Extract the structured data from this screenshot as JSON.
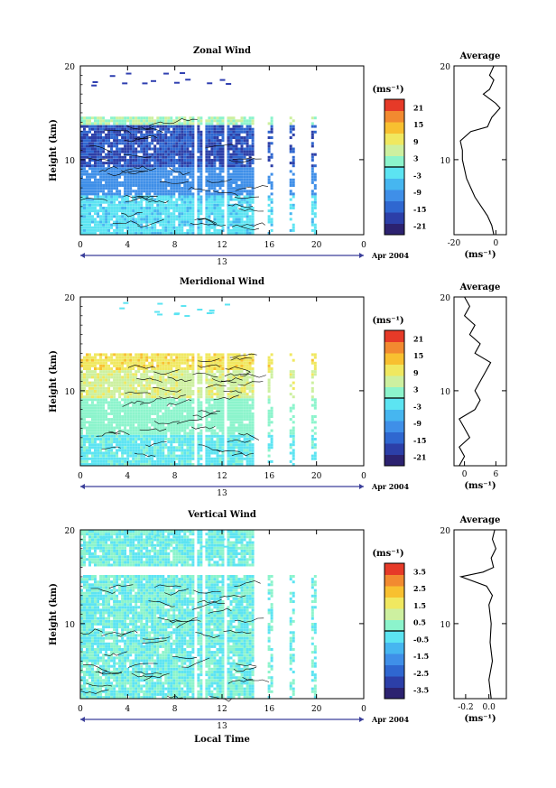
{
  "figure": {
    "date_label": "Apr 2004",
    "day_label": "13",
    "xlabel": "Local Time",
    "ylabel": "Height (km)",
    "unit_label": "(ms⁻¹)",
    "average_title": "Average"
  },
  "chart_data": [
    {
      "type": "heatmap",
      "title": "Zonal Wind",
      "x_ticks": [
        "0",
        "4",
        "8",
        "12",
        "16",
        "20",
        "0"
      ],
      "xlim": [
        0,
        24
      ],
      "y_ticks": [
        "20",
        "10"
      ],
      "ylim": [
        2,
        20
      ],
      "colorbar_ticks": [
        "21",
        "15",
        "9",
        "3",
        "-3",
        "-9",
        "-15",
        "-21"
      ],
      "colorbar_range": [
        -24,
        24
      ],
      "regimes": [
        {
          "z0": 2,
          "z1": 6,
          "value": -3
        },
        {
          "z0": 6,
          "z1": 9,
          "value": -10
        },
        {
          "z0": 9,
          "z1": 13.5,
          "value": -16
        },
        {
          "z0": 13.5,
          "z1": 14.5,
          "value": 4
        }
      ],
      "average": {
        "xlim": [
          -20,
          5
        ],
        "x_ticks": [
          "-20",
          "0"
        ],
        "ylim": [
          2,
          20
        ],
        "y_ticks": [
          "20",
          "10"
        ],
        "profile": [
          [
            2,
            -1
          ],
          [
            3,
            -2
          ],
          [
            4,
            -4
          ],
          [
            5,
            -7
          ],
          [
            6,
            -10
          ],
          [
            7,
            -12
          ],
          [
            8,
            -14
          ],
          [
            9,
            -15
          ],
          [
            10,
            -16
          ],
          [
            11,
            -16
          ],
          [
            12,
            -17
          ],
          [
            13,
            -12
          ],
          [
            13.5,
            -4
          ],
          [
            14,
            -3
          ],
          [
            14.5,
            -2
          ],
          [
            15,
            0
          ],
          [
            15.5,
            2
          ],
          [
            16,
            0
          ],
          [
            16.5,
            -3
          ],
          [
            17,
            -6
          ],
          [
            17.5,
            -3
          ],
          [
            18,
            -2
          ],
          [
            18.5,
            -1
          ],
          [
            19,
            -3
          ],
          [
            19.5,
            -2
          ],
          [
            20,
            -1
          ]
        ]
      }
    },
    {
      "type": "heatmap",
      "title": "Meridional Wind",
      "x_ticks": [
        "0",
        "4",
        "8",
        "12",
        "16",
        "20",
        "0"
      ],
      "xlim": [
        0,
        24
      ],
      "y_ticks": [
        "20",
        "10"
      ],
      "ylim": [
        2,
        20
      ],
      "colorbar_ticks": [
        "21",
        "15",
        "9",
        "3",
        "-3",
        "-9",
        "-15",
        "-21"
      ],
      "colorbar_range": [
        -24,
        24
      ],
      "regimes": [
        {
          "z0": 2,
          "z1": 5,
          "value": -1
        },
        {
          "z0": 5,
          "z1": 9,
          "value": 2
        },
        {
          "z0": 9,
          "z1": 12,
          "value": 7
        },
        {
          "z0": 12,
          "z1": 14,
          "value": 11
        }
      ],
      "average": {
        "xlim": [
          -2,
          8
        ],
        "x_ticks": [
          "0",
          "6"
        ],
        "ylim": [
          2,
          20
        ],
        "y_ticks": [
          "20",
          "10"
        ],
        "profile": [
          [
            2,
            -1
          ],
          [
            3,
            0
          ],
          [
            4,
            -1
          ],
          [
            5,
            1
          ],
          [
            6,
            0
          ],
          [
            7,
            -1
          ],
          [
            8,
            2
          ],
          [
            9,
            3
          ],
          [
            10,
            2
          ],
          [
            11,
            3
          ],
          [
            12,
            4
          ],
          [
            13,
            5
          ],
          [
            14,
            2
          ],
          [
            15,
            3
          ],
          [
            16,
            1
          ],
          [
            17,
            2
          ],
          [
            18,
            0
          ],
          [
            19,
            1
          ],
          [
            20,
            0
          ]
        ]
      }
    },
    {
      "type": "heatmap",
      "title": "Vertical Wind",
      "x_ticks": [
        "0",
        "4",
        "8",
        "12",
        "16",
        "20",
        "0"
      ],
      "xlim": [
        0,
        24
      ],
      "y_ticks": [
        "20",
        "10"
      ],
      "ylim": [
        2,
        20
      ],
      "colorbar_ticks": [
        "3.5",
        "2.5",
        "1.5",
        "0.5",
        "-0.5",
        "-1.5",
        "-2.5",
        "-3.5"
      ],
      "colorbar_range": [
        -4,
        4
      ],
      "regimes": [
        {
          "z0": 2,
          "z1": 15,
          "value": 0
        },
        {
          "z0": 16,
          "z1": 20,
          "value": 0
        }
      ],
      "average": {
        "xlim": [
          -0.3,
          0.15
        ],
        "x_ticks": [
          "-0.2",
          "0.0"
        ],
        "ylim": [
          2,
          20
        ],
        "y_ticks": [
          "20",
          "10"
        ],
        "profile": [
          [
            2,
            0.02
          ],
          [
            4,
            0.0
          ],
          [
            6,
            0.03
          ],
          [
            8,
            0.01
          ],
          [
            10,
            0.02
          ],
          [
            12,
            0.0
          ],
          [
            13,
            0.03
          ],
          [
            14,
            -0.02
          ],
          [
            15,
            -0.24
          ],
          [
            15.5,
            -0.05
          ],
          [
            16,
            0.04
          ],
          [
            17,
            0.02
          ],
          [
            18,
            0.06
          ],
          [
            19,
            0.03
          ],
          [
            20,
            0.05
          ]
        ]
      }
    }
  ]
}
